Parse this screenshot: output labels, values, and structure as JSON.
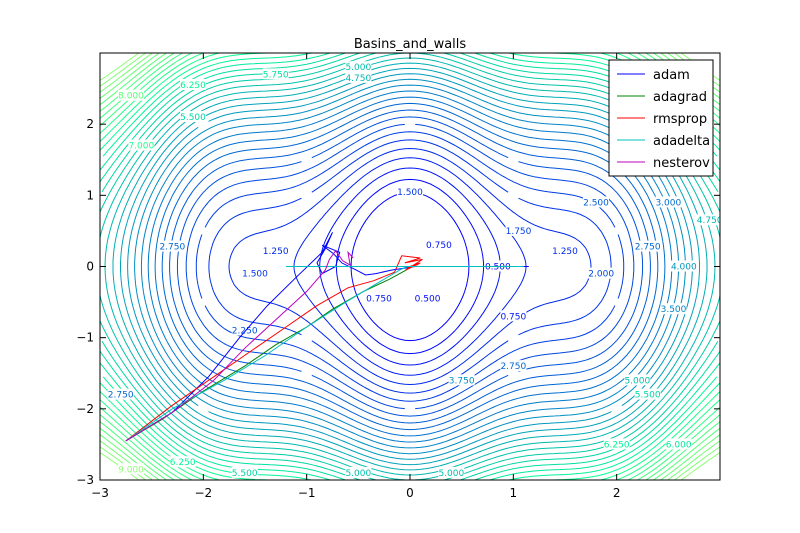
{
  "chart_data": {
    "type": "line",
    "title": "Basins_and_walls",
    "xlabel": "",
    "ylabel": "",
    "xlim": [
      -3,
      3
    ],
    "ylim": [
      -3,
      3
    ],
    "x_ticks": [
      -3,
      -2,
      -1,
      0,
      1,
      2
    ],
    "y_ticks": [
      -3,
      -2,
      -1,
      0,
      1,
      2
    ],
    "x_tick_labels": [
      "−3",
      "−2",
      "−1",
      "0",
      "1",
      "2"
    ],
    "y_tick_labels": [
      "−3",
      "−2",
      "−1",
      "0",
      "1",
      "2"
    ],
    "legend_placement": "top-right",
    "contour_levels": {
      "start": 0.25,
      "step": 0.25,
      "end": 9.0,
      "colormap": "blue-to-green"
    },
    "contour_labels": [
      {
        "x": -2.3,
        "y": 0.28,
        "text": "2.750"
      },
      {
        "x": -1.3,
        "y": 0.22,
        "text": "1.250"
      },
      {
        "x": -1.5,
        "y": -0.1,
        "text": "1.500"
      },
      {
        "x": -0.3,
        "y": -0.45,
        "text": "0.750"
      },
      {
        "x": 0.28,
        "y": 0.3,
        "text": "0.750"
      },
      {
        "x": 0.85,
        "y": 0.0,
        "text": "0.500"
      },
      {
        "x": 0.17,
        "y": -0.45,
        "text": "0.500"
      },
      {
        "x": 1.0,
        "y": -0.7,
        "text": "0.750"
      },
      {
        "x": 0.0,
        "y": 1.05,
        "text": "1.500"
      },
      {
        "x": 1.05,
        "y": 0.5,
        "text": "1.750"
      },
      {
        "x": 1.5,
        "y": 0.22,
        "text": "1.250"
      },
      {
        "x": 1.8,
        "y": 0.9,
        "text": "2.500"
      },
      {
        "x": 1.85,
        "y": -0.1,
        "text": "2.000"
      },
      {
        "x": 2.3,
        "y": 0.28,
        "text": "2.750"
      },
      {
        "x": -1.6,
        "y": -0.9,
        "text": "2.250"
      },
      {
        "x": 1.0,
        "y": -1.4,
        "text": "2.750"
      },
      {
        "x": 0.5,
        "y": -1.6,
        "text": "3.750"
      },
      {
        "x": -0.5,
        "y": -2.9,
        "text": "5.000"
      },
      {
        "x": 0.4,
        "y": -2.9,
        "text": "5.000"
      },
      {
        "x": -0.5,
        "y": 2.8,
        "text": "5.000"
      },
      {
        "x": -0.5,
        "y": 2.65,
        "text": "4.750"
      },
      {
        "x": -1.3,
        "y": 2.7,
        "text": "5.750"
      },
      {
        "x": -2.1,
        "y": 2.55,
        "text": "6.250"
      },
      {
        "x": -2.7,
        "y": 2.4,
        "text": "8.000"
      },
      {
        "x": -2.1,
        "y": 2.1,
        "text": "5.500"
      },
      {
        "x": -2.6,
        "y": 1.7,
        "text": "7.000"
      },
      {
        "x": 2.2,
        "y": -1.6,
        "text": "5.000"
      },
      {
        "x": 2.3,
        "y": -1.8,
        "text": "5.500"
      },
      {
        "x": 2.6,
        "y": -2.5,
        "text": "6.000"
      },
      {
        "x": -2.8,
        "y": -1.8,
        "text": "2.750"
      },
      {
        "x": -2.2,
        "y": -2.75,
        "text": "6.250"
      },
      {
        "x": -2.7,
        "y": -2.85,
        "text": "9.000"
      },
      {
        "x": -1.6,
        "y": -2.9,
        "text": "5.500"
      },
      {
        "x": 2.5,
        "y": 0.9,
        "text": "3.000"
      },
      {
        "x": 2.65,
        "y": 0.0,
        "text": "4.000"
      },
      {
        "x": 2.55,
        "y": -0.6,
        "text": "3.500"
      },
      {
        "x": 2.9,
        "y": 0.65,
        "text": "4.750"
      },
      {
        "x": 2.0,
        "y": -2.5,
        "text": "6.250"
      }
    ],
    "series": [
      {
        "name": "adam",
        "color": "#0000ff",
        "x": [
          -2.75,
          -2.3,
          -1.95,
          -1.65,
          -1.38,
          -1.1,
          -0.85,
          -0.75,
          -0.82,
          -0.9,
          -0.85,
          -0.72,
          -0.68,
          -0.85,
          -0.74,
          -0.66,
          -0.52,
          -0.43,
          -0.33,
          -0.18,
          0.05,
          0.4,
          0.8,
          1.15
        ],
        "y": [
          -2.45,
          -2.05,
          -1.55,
          -1.0,
          -0.55,
          -0.15,
          0.2,
          0.48,
          0.25,
          0.05,
          -0.1,
          0.0,
          0.2,
          0.3,
          0.18,
          0.05,
          -0.05,
          -0.12,
          -0.1,
          -0.05,
          0.0,
          0.0,
          0.0,
          0.0
        ]
      },
      {
        "name": "adagrad",
        "color": "#008000",
        "x": [
          -2.75,
          -2.4,
          -2.0,
          -1.6,
          -1.3,
          -1.0,
          -0.75,
          -0.45,
          -0.2,
          -0.05,
          0.0,
          0.02
        ],
        "y": [
          -2.45,
          -2.15,
          -1.75,
          -1.4,
          -1.1,
          -0.85,
          -0.6,
          -0.35,
          -0.18,
          -0.06,
          0.0,
          0.0
        ]
      },
      {
        "name": "rmsprop",
        "color": "#ff0000",
        "x": [
          -2.75,
          -2.3,
          -1.9,
          -1.55,
          -1.2,
          -0.9,
          -0.6,
          -0.35,
          -0.15,
          -0.08,
          0.1,
          -0.05,
          0.12,
          -0.04,
          0.1,
          0.0,
          0.08,
          -0.02,
          0.05,
          0.0
        ],
        "y": [
          -2.45,
          -1.95,
          -1.55,
          -1.2,
          -0.85,
          -0.55,
          -0.3,
          -0.2,
          -0.08,
          0.15,
          0.12,
          0.05,
          0.1,
          -0.05,
          0.05,
          0.0,
          0.03,
          -0.02,
          0.02,
          0.0
        ]
      },
      {
        "name": "adadelta",
        "color": "#00bfbf",
        "x": [
          -2.75,
          -2.3,
          -1.8,
          -1.4,
          -1.0,
          -0.62,
          -0.3,
          -0.1,
          -0.03,
          0.0,
          -1.2,
          -0.5,
          0.5,
          1.1,
          0.0
        ],
        "y": [
          -2.45,
          -2.0,
          -1.6,
          -1.25,
          -0.85,
          -0.5,
          -0.22,
          -0.05,
          0.0,
          0.0,
          0.0,
          0.0,
          0.0,
          0.0,
          0.0
        ]
      },
      {
        "name": "nesterov",
        "color": "#bf00bf",
        "x": [
          -2.75,
          -2.3,
          -1.9,
          -1.6,
          -1.3,
          -1.0,
          -0.82,
          -0.78,
          -0.72,
          -0.65,
          -0.58,
          -0.6,
          -0.55
        ],
        "y": [
          -2.45,
          -2.05,
          -1.6,
          -1.15,
          -0.75,
          -0.35,
          -0.05,
          0.1,
          0.22,
          0.08,
          0.02,
          0.2,
          0.12
        ]
      }
    ]
  }
}
